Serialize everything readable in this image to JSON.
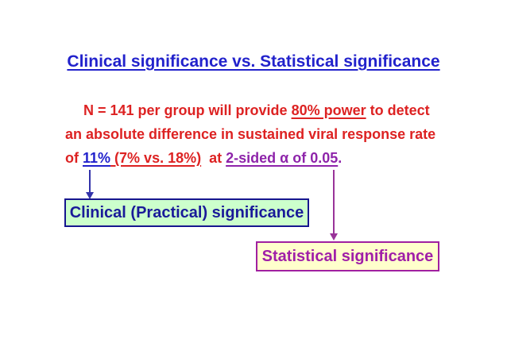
{
  "title": "Clinical significance vs. Statistical significance",
  "body": {
    "line1_pre": "N = 141 per group will provide ",
    "line1_underline": "80% power",
    "line1_post": " to detect",
    "line2": "an absolute difference in sustained viral response rate",
    "line3_of": "of ",
    "line3_pct": "11%",
    "line3_paren": " (7% vs. 18%)",
    "line3_at": "  at ",
    "line3_alpha": "2-sided α of 0.05",
    "line3_period": "."
  },
  "boxes": {
    "clinical": "Clinical (Practical) significance",
    "statistical": "Statistical significance"
  },
  "colors": {
    "blue": "#2222CC",
    "red": "#DD2222",
    "purple_text": "#8E24AA",
    "purple_box": "#A020A0",
    "arrow_blue": "#3333AA",
    "arrow_purple": "#993399",
    "box1_bg": "#CCFFCC",
    "box1_border": "#16168F",
    "box1_text": "#1A1A99",
    "box2_bg": "#FFFFCC",
    "box2_text": "#A01FA8"
  }
}
